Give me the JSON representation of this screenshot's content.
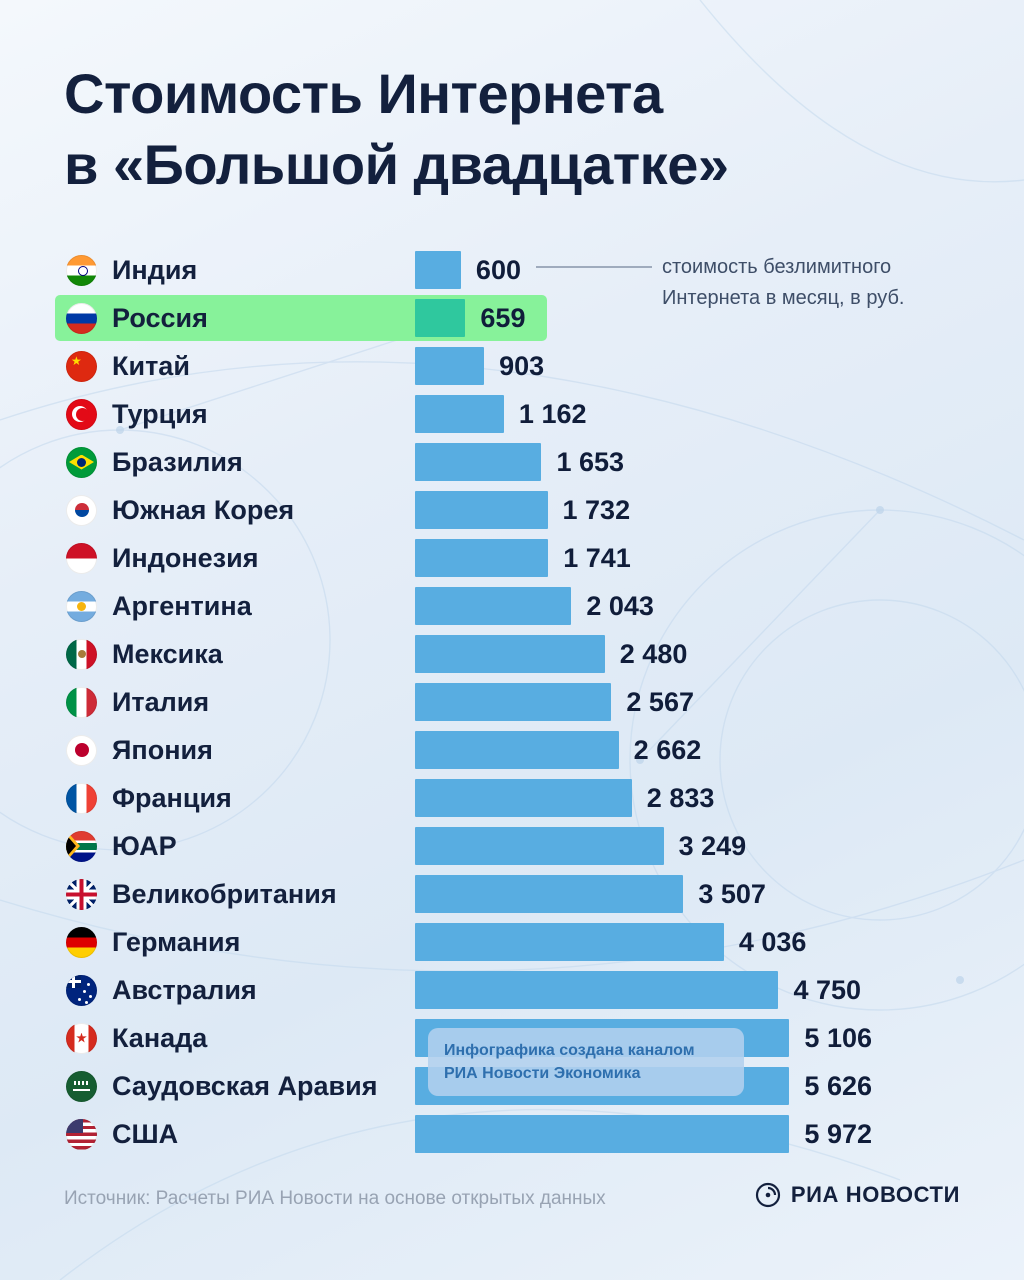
{
  "title": {
    "line1": "Стоимость Интернета",
    "line2": "в «Большой двадцатке»"
  },
  "annotation": {
    "line1": "стоимость безлимитного",
    "line2": "Интернета в месяц, в руб."
  },
  "note": {
    "line1": "Инфографика создана каналом",
    "line2": "РИА Новости Экономика"
  },
  "footer": {
    "source": "Источник: Расчеты РИА Новости на основе открытых данных",
    "logo_text": "РИА НОВОСТИ"
  },
  "colors": {
    "bar": "#58ade1",
    "highlight_bar": "#2fc89e",
    "highlight_band": "#87f29a",
    "title_text": "#13203d",
    "value_text": "#101d3a"
  },
  "chart_data": {
    "type": "bar",
    "orientation": "horizontal",
    "title": "Стоимость Интернета в «Большой двадцатке»",
    "value_description": "стоимость безлимитного Интернета в месяц, в руб.",
    "unit": "руб. в месяц",
    "max_value": 5972,
    "bar_color": "#58ade1",
    "highlight_bar_color": "#2fc89e",
    "highlight_bg_color": "#87f29a",
    "rows": [
      {
        "country": "Индия",
        "flag": "india",
        "value": 600,
        "label": "600",
        "highlight": false
      },
      {
        "country": "Россия",
        "flag": "russia",
        "value": 659,
        "label": "659",
        "highlight": true
      },
      {
        "country": "Китай",
        "flag": "china",
        "value": 903,
        "label": "903",
        "highlight": false
      },
      {
        "country": "Турция",
        "flag": "turkey",
        "value": 1162,
        "label": "1 162",
        "highlight": false
      },
      {
        "country": "Бразилия",
        "flag": "brazil",
        "value": 1653,
        "label": "1 653",
        "highlight": false
      },
      {
        "country": "Южная Корея",
        "flag": "south-korea",
        "value": 1732,
        "label": "1 732",
        "highlight": false
      },
      {
        "country": "Индонезия",
        "flag": "indonesia",
        "value": 1741,
        "label": "1 741",
        "highlight": false
      },
      {
        "country": "Аргентина",
        "flag": "argentina",
        "value": 2043,
        "label": "2 043",
        "highlight": false
      },
      {
        "country": "Мексика",
        "flag": "mexico",
        "value": 2480,
        "label": "2 480",
        "highlight": false
      },
      {
        "country": "Италия",
        "flag": "italy",
        "value": 2567,
        "label": "2 567",
        "highlight": false
      },
      {
        "country": "Япония",
        "flag": "japan",
        "value": 2662,
        "label": "2 662",
        "highlight": false
      },
      {
        "country": "Франция",
        "flag": "france",
        "value": 2833,
        "label": "2 833",
        "highlight": false
      },
      {
        "country": "ЮАР",
        "flag": "south-africa",
        "value": 3249,
        "label": "3 249",
        "highlight": false
      },
      {
        "country": "Великобритания",
        "flag": "united-kingdom",
        "value": 3507,
        "label": "3 507",
        "highlight": false
      },
      {
        "country": "Германия",
        "flag": "germany",
        "value": 4036,
        "label": "4 036",
        "highlight": false
      },
      {
        "country": "Австралия",
        "flag": "australia",
        "value": 4750,
        "label": "4 750",
        "highlight": false
      },
      {
        "country": "Канада",
        "flag": "canada",
        "value": 5106,
        "label": "5 106",
        "highlight": false
      },
      {
        "country": "Саудовская Аравия",
        "flag": "saudi-arabia",
        "value": 5626,
        "label": "5 626",
        "highlight": false
      },
      {
        "country": "США",
        "flag": "usa",
        "value": 5972,
        "label": "5 972",
        "highlight": false
      }
    ]
  }
}
